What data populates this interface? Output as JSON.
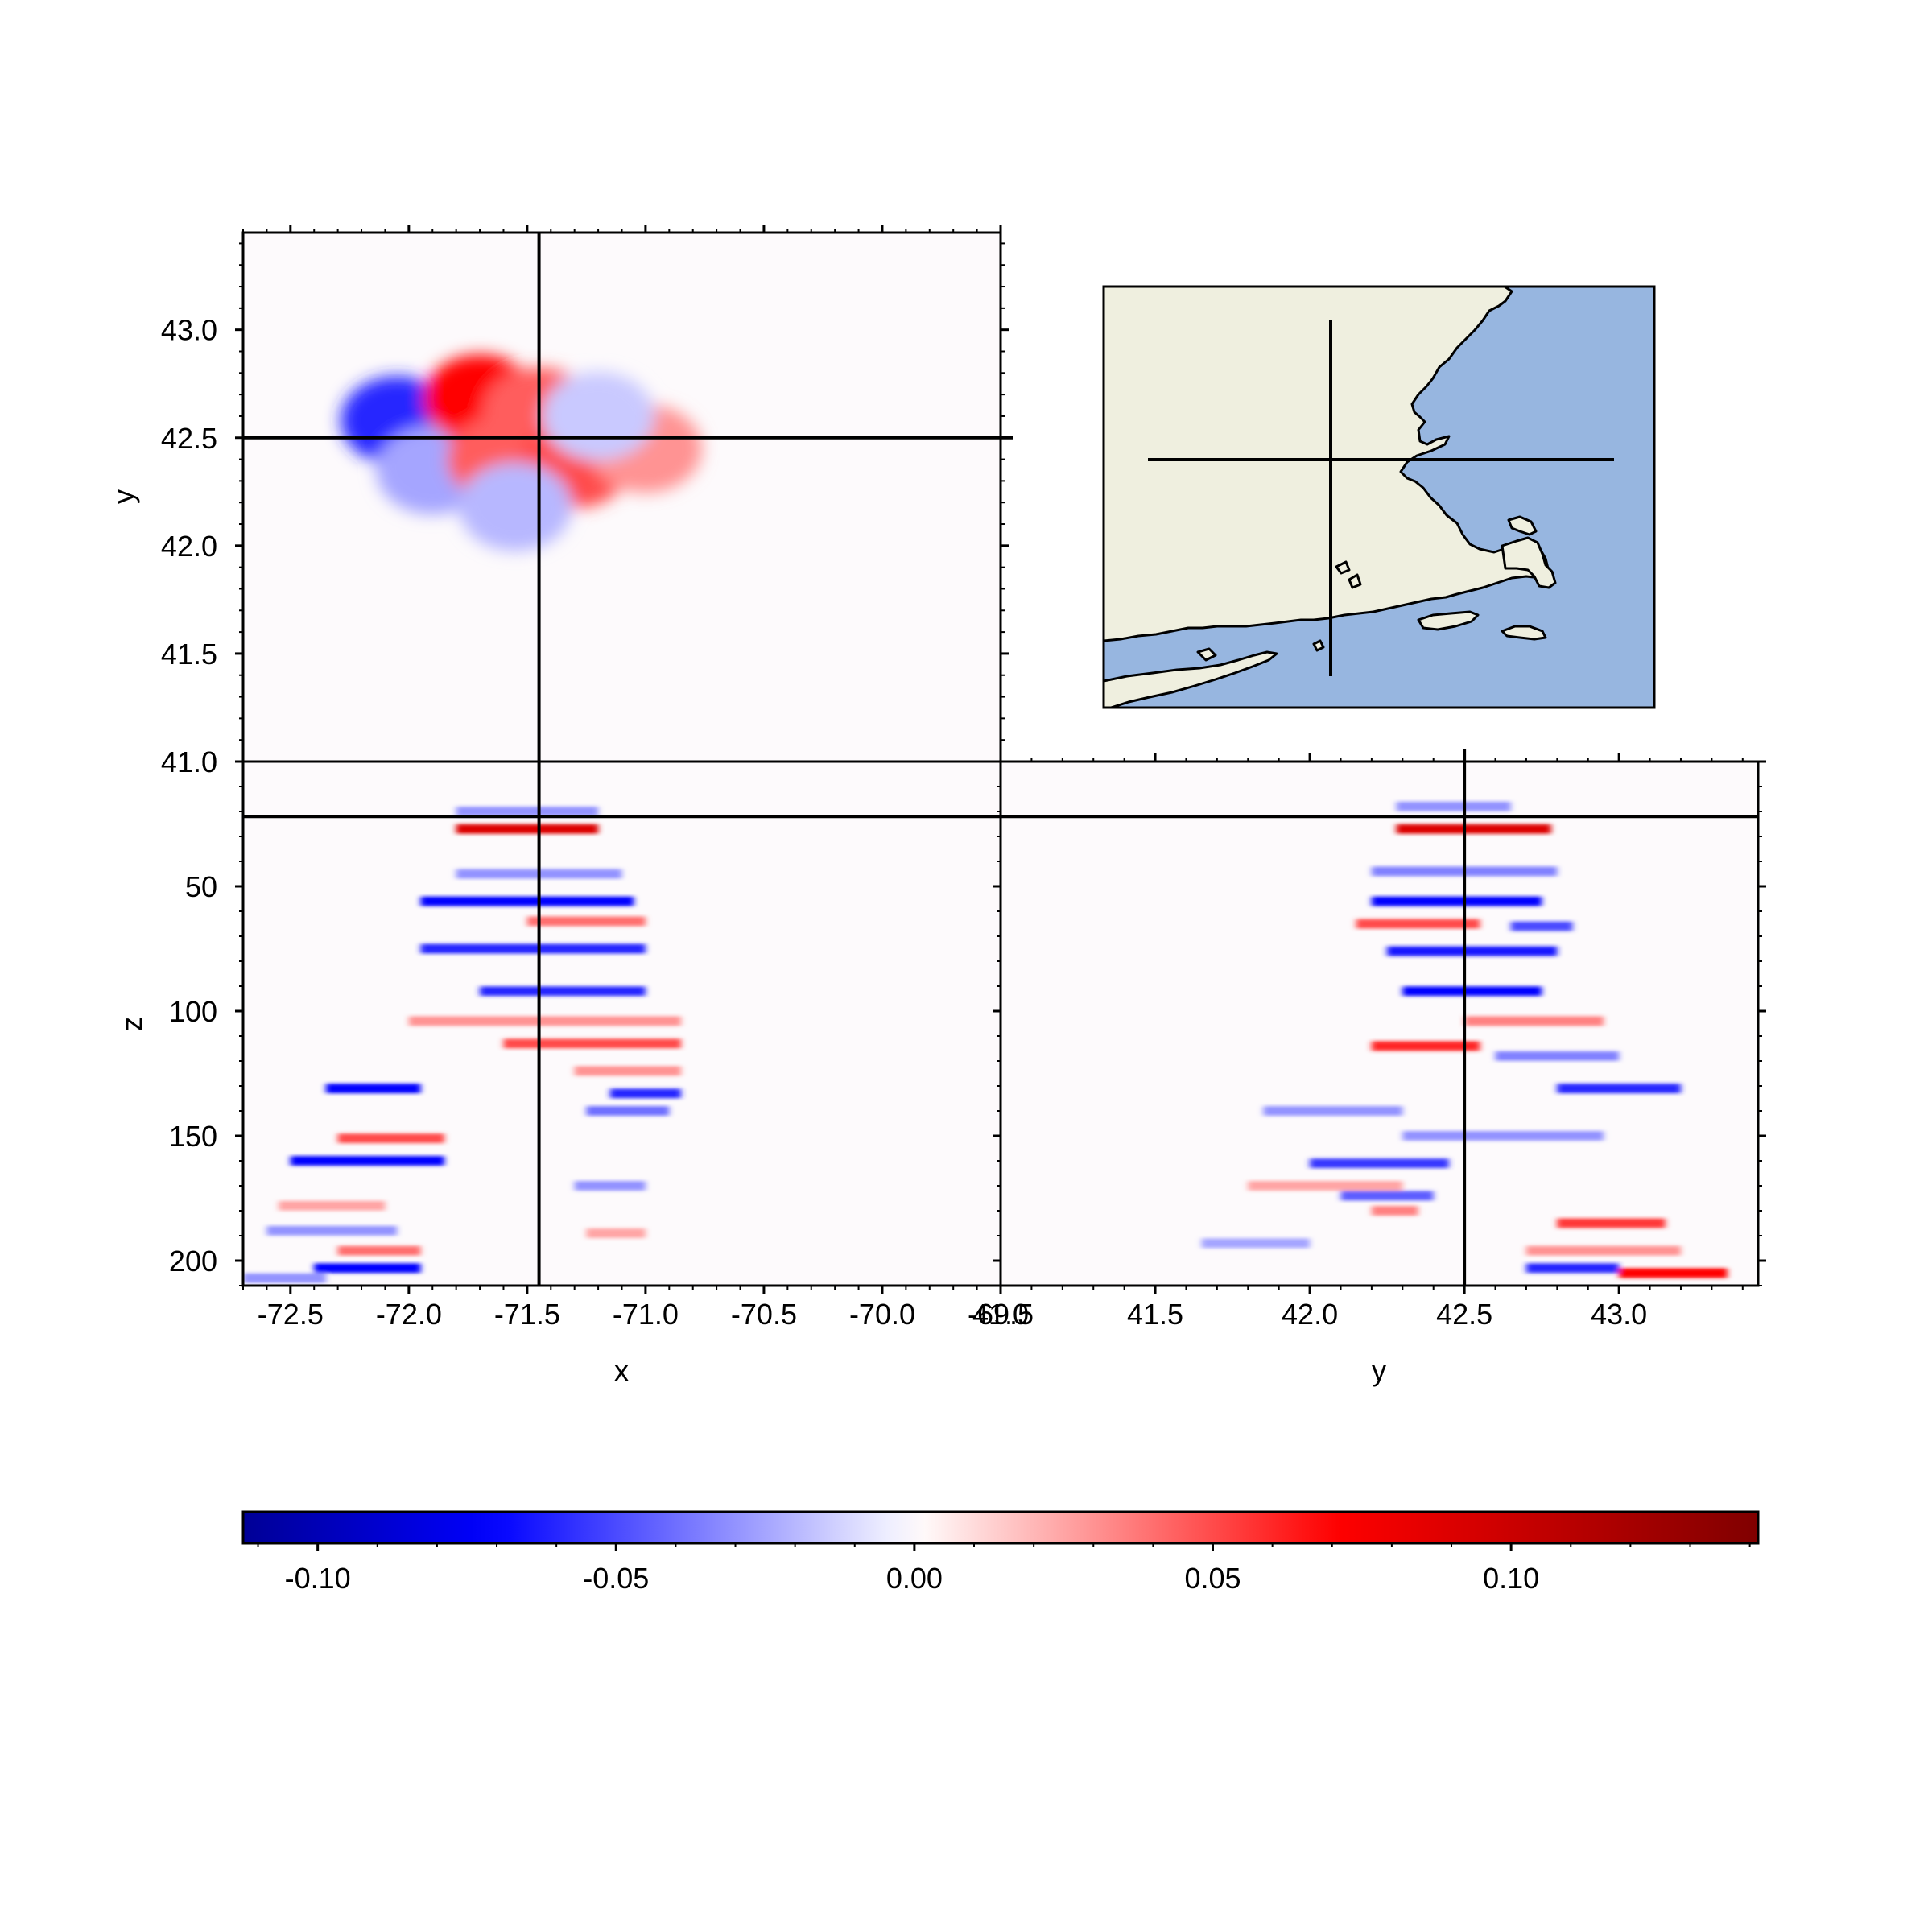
{
  "chart_data": [
    {
      "type": "heatmap",
      "panel": "xy-plane",
      "xlabel": "x",
      "ylabel": "y",
      "xlim": [
        -72.7,
        -69.5
      ],
      "ylim": [
        41.0,
        43.45
      ],
      "ytick_labels": [
        "41.0",
        "41.5",
        "42.0",
        "42.5",
        "43.0"
      ],
      "crosshair": {
        "x": -71.45,
        "y": 42.5
      },
      "blobs": [
        {
          "x": -72.05,
          "y": 42.58,
          "value": -0.06
        },
        {
          "x": -71.9,
          "y": 42.35,
          "value": -0.025
        },
        {
          "x": -71.7,
          "y": 42.68,
          "value": 0.07
        },
        {
          "x": -71.45,
          "y": 42.62,
          "value": 0.045
        },
        {
          "x": -71.6,
          "y": 42.4,
          "value": 0.045
        },
        {
          "x": -71.3,
          "y": 42.38,
          "value": 0.05
        },
        {
          "x": -71.0,
          "y": 42.45,
          "value": 0.03
        },
        {
          "x": -71.55,
          "y": 42.18,
          "value": -0.02
        },
        {
          "x": -71.2,
          "y": 42.6,
          "value": -0.015
        }
      ]
    },
    {
      "type": "heatmap",
      "panel": "xz-section",
      "xlabel": "x",
      "ylabel": "z",
      "xlim": [
        -72.7,
        -69.5
      ],
      "ylim": [
        210,
        0
      ],
      "xtick_labels": [
        "-72.5",
        "-72.0",
        "-71.5",
        "-71.0",
        "-70.5",
        "-70.0",
        "-69.5"
      ],
      "ytick_labels": [
        "0",
        "50",
        "100",
        "150",
        "200"
      ],
      "crosshair": {
        "x": -71.45,
        "z": 22
      },
      "bands": [
        {
          "z": 20,
          "x0": -71.8,
          "x1": -71.2,
          "value": -0.03
        },
        {
          "z": 27,
          "x0": -71.8,
          "x1": -71.2,
          "value": 0.09
        },
        {
          "z": 45,
          "x0": -71.8,
          "x1": -71.1,
          "value": -0.03
        },
        {
          "z": 56,
          "x0": -71.95,
          "x1": -71.05,
          "value": -0.07
        },
        {
          "z": 64,
          "x0": -71.5,
          "x1": -71.0,
          "value": 0.04
        },
        {
          "z": 75,
          "x0": -71.95,
          "x1": -71.0,
          "value": -0.06
        },
        {
          "z": 92,
          "x0": -71.7,
          "x1": -71.0,
          "value": -0.06
        },
        {
          "z": 104,
          "x0": -72.0,
          "x1": -70.85,
          "value": 0.03
        },
        {
          "z": 113,
          "x0": -71.6,
          "x1": -70.85,
          "value": 0.05
        },
        {
          "z": 124,
          "x0": -71.3,
          "x1": -70.85,
          "value": 0.03
        },
        {
          "z": 131,
          "x0": -72.35,
          "x1": -71.95,
          "value": -0.07
        },
        {
          "z": 133,
          "x0": -71.15,
          "x1": -70.85,
          "value": -0.06
        },
        {
          "z": 140,
          "x0": -71.25,
          "x1": -70.9,
          "value": -0.04
        },
        {
          "z": 151,
          "x0": -72.3,
          "x1": -71.85,
          "value": 0.05
        },
        {
          "z": 160,
          "x0": -72.5,
          "x1": -71.85,
          "value": -0.07
        },
        {
          "z": 170,
          "x0": -71.3,
          "x1": -71.0,
          "value": -0.03
        },
        {
          "z": 178,
          "x0": -72.55,
          "x1": -72.1,
          "value": 0.025
        },
        {
          "z": 188,
          "x0": -72.6,
          "x1": -72.05,
          "value": -0.03
        },
        {
          "z": 189,
          "x0": -71.25,
          "x1": -71.0,
          "value": 0.025
        },
        {
          "z": 196,
          "x0": -72.3,
          "x1": -71.95,
          "value": 0.04
        },
        {
          "z": 203,
          "x0": -72.4,
          "x1": -71.95,
          "value": -0.07
        },
        {
          "z": 207,
          "x0": -72.7,
          "x1": -72.35,
          "value": -0.03
        }
      ]
    },
    {
      "type": "heatmap",
      "panel": "yz-section",
      "xlabel": "y",
      "ylabel": "",
      "xlim": [
        41.0,
        43.45
      ],
      "ylim": [
        210,
        0
      ],
      "xtick_labels": [
        "41.0",
        "41.5",
        "42.0",
        "42.5",
        "43.0"
      ],
      "crosshair": {
        "y": 42.5,
        "z": 22
      },
      "bands": [
        {
          "z": 18,
          "y0": 42.28,
          "y1": 42.65,
          "value": -0.03
        },
        {
          "z": 27,
          "y0": 42.28,
          "y1": 42.78,
          "value": 0.09
        },
        {
          "z": 44,
          "y0": 42.2,
          "y1": 42.8,
          "value": -0.035
        },
        {
          "z": 56,
          "y0": 42.2,
          "y1": 42.75,
          "value": -0.07
        },
        {
          "z": 65,
          "y0": 42.15,
          "y1": 42.55,
          "value": 0.05
        },
        {
          "z": 66,
          "y0": 42.65,
          "y1": 42.85,
          "value": -0.05
        },
        {
          "z": 76,
          "y0": 42.25,
          "y1": 42.8,
          "value": -0.065
        },
        {
          "z": 92,
          "y0": 42.3,
          "y1": 42.75,
          "value": -0.07
        },
        {
          "z": 104,
          "y0": 42.5,
          "y1": 42.95,
          "value": 0.035
        },
        {
          "z": 114,
          "y0": 42.2,
          "y1": 42.55,
          "value": 0.06
        },
        {
          "z": 118,
          "y0": 42.6,
          "y1": 43.0,
          "value": -0.035
        },
        {
          "z": 131,
          "y0": 42.8,
          "y1": 43.2,
          "value": -0.06
        },
        {
          "z": 140,
          "y0": 41.85,
          "y1": 42.3,
          "value": -0.03
        },
        {
          "z": 150,
          "y0": 42.3,
          "y1": 42.95,
          "value": -0.03
        },
        {
          "z": 161,
          "y0": 42.0,
          "y1": 42.45,
          "value": -0.055
        },
        {
          "z": 170,
          "y0": 41.8,
          "y1": 42.3,
          "value": 0.025
        },
        {
          "z": 174,
          "y0": 42.1,
          "y1": 42.4,
          "value": -0.045
        },
        {
          "z": 180,
          "y0": 42.2,
          "y1": 42.35,
          "value": 0.035
        },
        {
          "z": 185,
          "y0": 42.8,
          "y1": 43.15,
          "value": 0.055
        },
        {
          "z": 193,
          "y0": 41.65,
          "y1": 42.0,
          "value": -0.025
        },
        {
          "z": 196,
          "y0": 42.7,
          "y1": 43.2,
          "value": 0.03
        },
        {
          "z": 203,
          "y0": 42.7,
          "y1": 43.0,
          "value": -0.06
        },
        {
          "z": 205,
          "y0": 43.0,
          "y1": 43.35,
          "value": 0.07
        }
      ]
    }
  ],
  "colorbar": {
    "cmap": "seismic",
    "vmin": -0.1125,
    "vmax": 0.1414,
    "tick_values": [
      -0.1,
      -0.05,
      0.0,
      0.05,
      0.1
    ],
    "tick_labels": [
      "-0.10",
      "-0.05",
      "0.00",
      "0.05",
      "0.10"
    ]
  },
  "inset_map": {
    "region": "Massachusetts coast",
    "land_color": "#efefdf",
    "ocean_color": "#97b6e0",
    "crosshair": true
  },
  "colors": {
    "background": "#ffffff",
    "axis": "#000000",
    "crosshair": "#000000",
    "field_background": "#fdfafc"
  }
}
